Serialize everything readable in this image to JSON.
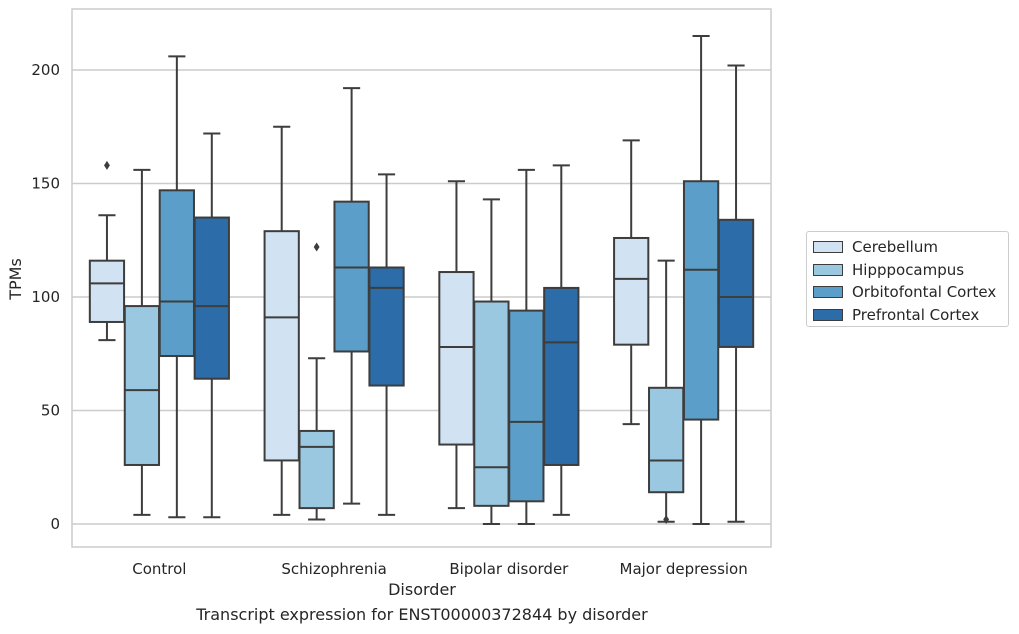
{
  "caption": "Transcript expression for ENST00000372844 by disorder",
  "chart_data": {
    "type": "box",
    "title": "",
    "xlabel": "Disorder",
    "ylabel": "TPMs",
    "ylim": [
      -10,
      227
    ],
    "yticks": [
      0,
      50,
      100,
      150,
      200
    ],
    "grid": "horizontal",
    "legend_position": "right",
    "categories": [
      "Control",
      "Schizophrenia",
      "Bipolar disorder",
      "Major depression"
    ],
    "series": [
      {
        "name": "Cerebellum",
        "color": "#d1e2f2",
        "boxes": [
          {
            "whislo": 81,
            "q1": 89,
            "med": 106,
            "q3": 116,
            "whishi": 136,
            "fliers": [
              158
            ]
          },
          {
            "whislo": 4,
            "q1": 28,
            "med": 91,
            "q3": 129,
            "whishi": 175,
            "fliers": []
          },
          {
            "whislo": 7,
            "q1": 35,
            "med": 78,
            "q3": 111,
            "whishi": 151,
            "fliers": []
          },
          {
            "whislo": 44,
            "q1": 79,
            "med": 108,
            "q3": 126,
            "whishi": 169,
            "fliers": []
          }
        ]
      },
      {
        "name": "Hipppocampus",
        "color": "#9ac8e0",
        "boxes": [
          {
            "whislo": 4,
            "q1": 26,
            "med": 59,
            "q3": 96,
            "whishi": 156,
            "fliers": []
          },
          {
            "whislo": 2,
            "q1": 7,
            "med": 34,
            "q3": 41,
            "whishi": 73,
            "fliers": [
              122
            ]
          },
          {
            "whislo": 0,
            "q1": 8,
            "med": 25,
            "q3": 98,
            "whishi": 143,
            "fliers": []
          },
          {
            "whislo": 1,
            "q1": 14,
            "med": 28,
            "q3": 60,
            "whishi": 116,
            "fliers": [
              2
            ]
          }
        ]
      },
      {
        "name": "Orbitofontal Cortex",
        "color": "#5a9ec9",
        "boxes": [
          {
            "whislo": 3,
            "q1": 74,
            "med": 98,
            "q3": 147,
            "whishi": 206,
            "fliers": []
          },
          {
            "whislo": 9,
            "q1": 76,
            "med": 113,
            "q3": 142,
            "whishi": 192,
            "fliers": []
          },
          {
            "whislo": 0,
            "q1": 10,
            "med": 45,
            "q3": 94,
            "whishi": 156,
            "fliers": []
          },
          {
            "whislo": 0,
            "q1": 46,
            "med": 112,
            "q3": 151,
            "whishi": 215,
            "fliers": []
          }
        ]
      },
      {
        "name": "Prefrontal Cortex",
        "color": "#2c6ca8",
        "boxes": [
          {
            "whislo": 3,
            "q1": 64,
            "med": 96,
            "q3": 135,
            "whishi": 172,
            "fliers": []
          },
          {
            "whislo": 4,
            "q1": 61,
            "med": 104,
            "q3": 113,
            "whishi": 154,
            "fliers": []
          },
          {
            "whislo": 4,
            "q1": 26,
            "med": 80,
            "q3": 104,
            "whishi": 158,
            "fliers": []
          },
          {
            "whislo": 1,
            "q1": 78,
            "med": 100,
            "q3": 134,
            "whishi": 202,
            "fliers": []
          }
        ]
      }
    ]
  }
}
